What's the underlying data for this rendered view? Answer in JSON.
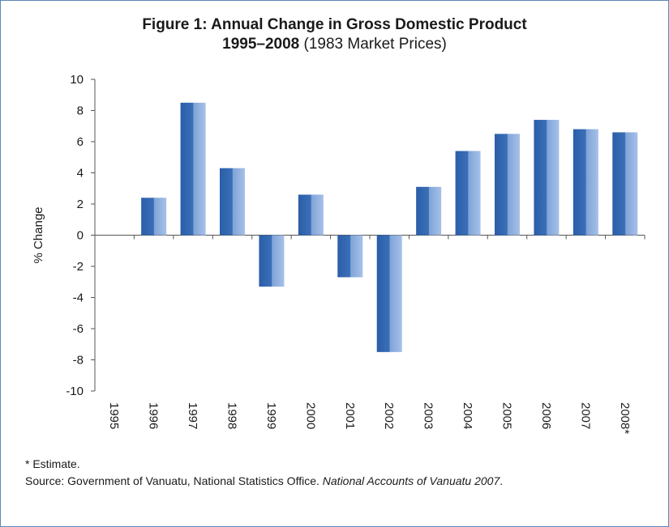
{
  "title_line1": "Figure 1: Annual Change in Gross Domestic Product",
  "title_line2_bold": "1995–2008",
  "title_line2_rest": " (1983 Market Prices)",
  "footnote": "* Estimate.",
  "source_prefix": "Source: Government of Vanuatu, National Statistics Office. ",
  "source_italic": "National Accounts of Vanuatu 2007",
  "source_suffix": ".",
  "colors": {
    "bar_dark": "#2a5ea8",
    "bar_light": "#8fb0df",
    "frame": "#5b87b5",
    "axis": "#555555"
  },
  "chart_data": {
    "type": "bar",
    "categories": [
      "1995",
      "1996",
      "1997",
      "1998",
      "1999",
      "2000",
      "2001",
      "2002",
      "2003",
      "2004",
      "2005",
      "2006",
      "2007",
      "2008*"
    ],
    "values": [
      0,
      2.4,
      8.5,
      4.3,
      -3.3,
      2.6,
      -2.7,
      -7.5,
      3.1,
      5.4,
      6.5,
      7.4,
      6.8,
      6.6
    ],
    "ylabel": "% Change",
    "ylim": [
      -10,
      10
    ],
    "yticks": [
      10,
      8,
      6,
      4,
      2,
      0,
      -2,
      -4,
      -6,
      -8,
      -10
    ],
    "grid": false
  }
}
